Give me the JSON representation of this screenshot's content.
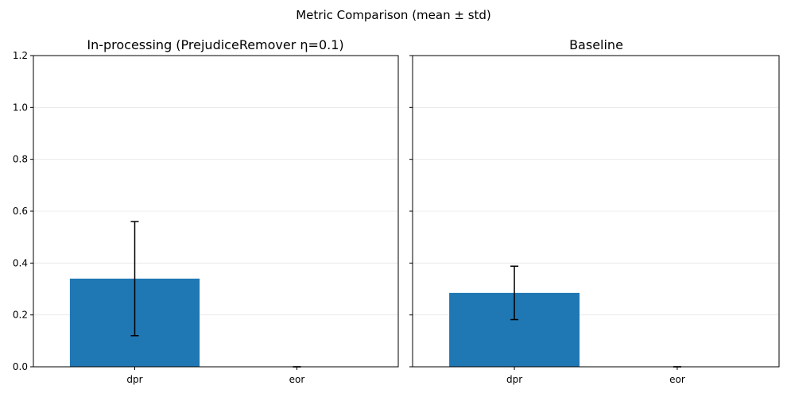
{
  "figure": {
    "title": "Metric Comparison (mean ± std)"
  },
  "colors": {
    "bar": "#1f77b4",
    "errorbar": "#000000",
    "grid": "#e6e6e6",
    "axes": "#000000"
  },
  "chart_data": [
    {
      "type": "bar",
      "title": "In-processing (PrejudiceRemover η=0.1)",
      "xlabel": "",
      "ylabel": "",
      "categories": [
        "dpr",
        "eor"
      ],
      "values": [
        0.34,
        0.0
      ],
      "errors": [
        0.22,
        0.0
      ],
      "ylim": [
        0,
        1.2
      ],
      "yticks": [
        "0.0",
        "0.2",
        "0.4",
        "0.6",
        "0.8",
        "1.0",
        "1.2"
      ],
      "grid": "y"
    },
    {
      "type": "bar",
      "title": "Baseline",
      "xlabel": "",
      "ylabel": "",
      "categories": [
        "dpr",
        "eor"
      ],
      "values": [
        0.285,
        0.0
      ],
      "errors": [
        0.103,
        0.0
      ],
      "ylim": [
        0,
        1.2
      ],
      "yticks": [
        "0.0",
        "0.2",
        "0.4",
        "0.6",
        "0.8",
        "1.0",
        "1.2"
      ],
      "grid": "y",
      "sharey": true
    }
  ]
}
